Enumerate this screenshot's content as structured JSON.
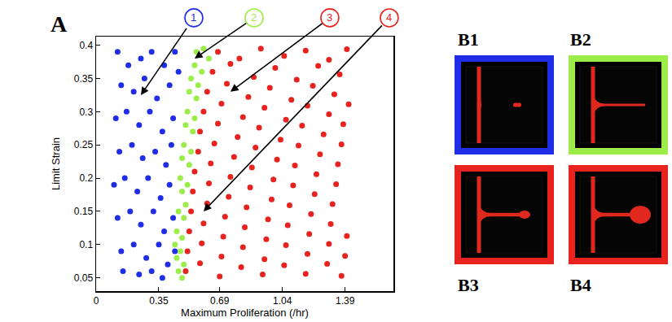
{
  "chart_data": {
    "type": "scatter",
    "panel_label": "A",
    "x_label": "Maximum Proliferation (/hr)",
    "y_label": "Limit Strain",
    "xlim": [
      0,
      1.66
    ],
    "ylim": [
      0.03,
      0.413
    ],
    "xticks": [
      0,
      0.35,
      0.69,
      1.04,
      1.39
    ],
    "yticks": [
      0.05,
      0.1,
      0.15,
      0.2,
      0.25,
      0.3,
      0.35,
      0.4
    ],
    "grid": false,
    "series": [
      {
        "color": "#1f2ee6",
        "marker": "circle",
        "x": [
          0.12,
          0.18,
          0.25,
          0.31,
          0.38,
          0.44,
          0.14,
          0.21,
          0.27,
          0.34,
          0.41,
          0.46,
          0.11,
          0.17,
          0.24,
          0.3,
          0.37,
          0.43,
          0.13,
          0.2,
          0.26,
          0.33,
          0.39,
          0.42,
          0.1,
          0.16,
          0.23,
          0.29,
          0.36,
          0.41,
          0.12,
          0.19,
          0.25,
          0.32,
          0.38,
          0.43,
          0.14,
          0.21,
          0.28,
          0.35,
          0.4,
          0.44,
          0.15,
          0.24,
          0.31,
          0.37
        ],
        "y": [
          0.39,
          0.37,
          0.38,
          0.39,
          0.37,
          0.39,
          0.34,
          0.33,
          0.35,
          0.32,
          0.34,
          0.36,
          0.29,
          0.3,
          0.28,
          0.3,
          0.27,
          0.29,
          0.24,
          0.25,
          0.23,
          0.24,
          0.22,
          0.25,
          0.19,
          0.2,
          0.18,
          0.2,
          0.17,
          0.19,
          0.14,
          0.15,
          0.13,
          0.15,
          0.12,
          0.14,
          0.09,
          0.1,
          0.08,
          0.1,
          0.07,
          0.09,
          0.06,
          0.055,
          0.06,
          0.05
        ]
      },
      {
        "color": "#9ded4a",
        "marker": "circle",
        "x": [
          0.56,
          0.6,
          0.63,
          0.55,
          0.59,
          0.53,
          0.57,
          0.52,
          0.56,
          0.51,
          0.55,
          0.5,
          0.54,
          0.49,
          0.53,
          0.48,
          0.52,
          0.47,
          0.51,
          0.48,
          0.5,
          0.46,
          0.49,
          0.45,
          0.48,
          0.44,
          0.47,
          0.45,
          0.49,
          0.46,
          0.48
        ],
        "y": [
          0.39,
          0.395,
          0.38,
          0.37,
          0.36,
          0.35,
          0.34,
          0.33,
          0.32,
          0.3,
          0.29,
          0.28,
          0.27,
          0.25,
          0.24,
          0.23,
          0.22,
          0.2,
          0.19,
          0.18,
          0.16,
          0.15,
          0.14,
          0.12,
          0.11,
          0.1,
          0.09,
          0.08,
          0.07,
          0.06,
          0.05
        ]
      },
      {
        "color": "#e8231f",
        "marker": "circle",
        "x": [
          0.68,
          0.8,
          0.92,
          1.05,
          1.17,
          1.3,
          1.4,
          0.65,
          0.75,
          0.88,
          1.0,
          1.12,
          1.24,
          1.36,
          0.62,
          0.73,
          0.85,
          0.97,
          1.09,
          1.21,
          1.33,
          0.6,
          0.7,
          0.82,
          0.94,
          1.06,
          1.18,
          1.3,
          1.41,
          0.58,
          0.68,
          0.79,
          0.91,
          1.03,
          1.15,
          1.27,
          1.38,
          0.57,
          0.66,
          0.77,
          0.89,
          1.01,
          1.13,
          1.25,
          1.37,
          0.55,
          0.64,
          0.75,
          0.87,
          0.99,
          1.11,
          1.23,
          1.35,
          0.54,
          0.63,
          0.74,
          0.86,
          0.98,
          1.1,
          1.22,
          1.34,
          0.53,
          0.62,
          0.72,
          0.84,
          0.96,
          1.08,
          1.2,
          1.32,
          0.52,
          0.6,
          0.71,
          0.83,
          0.95,
          1.07,
          1.19,
          1.31,
          1.4,
          0.51,
          0.59,
          0.7,
          0.82,
          0.94,
          1.06,
          1.18,
          1.3,
          1.39,
          0.5,
          0.58,
          0.69,
          0.81,
          0.93,
          1.05,
          1.17,
          1.29,
          1.37
        ],
        "y": [
          0.39,
          0.38,
          0.395,
          0.384,
          0.392,
          0.378,
          0.394,
          0.36,
          0.372,
          0.352,
          0.366,
          0.348,
          0.369,
          0.356,
          0.33,
          0.342,
          0.322,
          0.336,
          0.318,
          0.339,
          0.326,
          0.3,
          0.312,
          0.292,
          0.306,
          0.288,
          0.309,
          0.296,
          0.311,
          0.27,
          0.282,
          0.262,
          0.276,
          0.258,
          0.279,
          0.266,
          0.281,
          0.24,
          0.252,
          0.232,
          0.246,
          0.228,
          0.249,
          0.236,
          0.251,
          0.21,
          0.222,
          0.202,
          0.216,
          0.198,
          0.219,
          0.206,
          0.221,
          0.18,
          0.192,
          0.172,
          0.186,
          0.168,
          0.189,
          0.176,
          0.191,
          0.15,
          0.162,
          0.142,
          0.156,
          0.138,
          0.159,
          0.146,
          0.161,
          0.12,
          0.132,
          0.112,
          0.126,
          0.108,
          0.129,
          0.116,
          0.131,
          0.113,
          0.09,
          0.102,
          0.082,
          0.096,
          0.078,
          0.099,
          0.086,
          0.101,
          0.083,
          0.06,
          0.072,
          0.052,
          0.066,
          0.055,
          0.069,
          0.056,
          0.071,
          0.053
        ]
      }
    ],
    "annotations": [
      {
        "text": "1",
        "x": 0.25,
        "y": 0.325,
        "color": "#1f2ee6"
      },
      {
        "text": "2",
        "x": 0.55,
        "y": 0.38,
        "color": "#9ded4a"
      },
      {
        "text": "3",
        "x": 0.75,
        "y": 0.33,
        "color": "#e8231f"
      },
      {
        "text": "4",
        "x": 0.6,
        "y": 0.15,
        "color": "#e8231f"
      }
    ],
    "panels": [
      {
        "label": "B1",
        "color": "#1f2ee6",
        "marker": "detached"
      },
      {
        "label": "B2",
        "color": "#9ded4a",
        "marker": "thin"
      },
      {
        "label": "B3",
        "color": "#e8231f",
        "marker": "bulb"
      },
      {
        "label": "B4",
        "color": "#e8231f",
        "marker": "large_bulb"
      }
    ]
  }
}
